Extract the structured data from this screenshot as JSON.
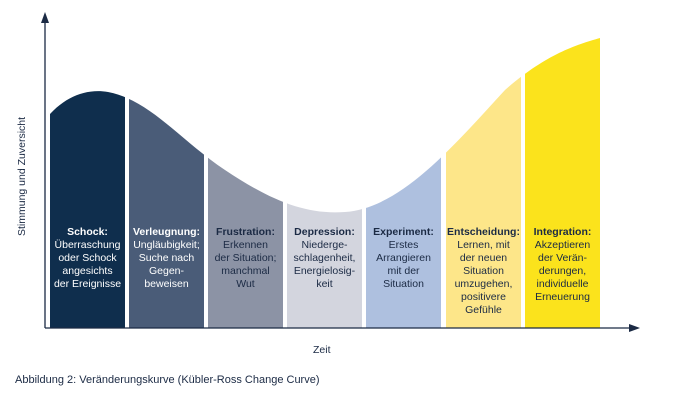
{
  "diagram": {
    "phases": [
      {
        "title": "Schock:",
        "lines": [
          "Überraschung",
          "oder Schock",
          "angesichts",
          "der Ereignisse"
        ],
        "color": "#0f2e4d",
        "text_color": "light",
        "level": 0.77
      },
      {
        "title": "Verleugnung:",
        "lines": [
          "Ungläubigkeit;",
          "Suche nach",
          "Gegen-",
          "beweisen"
        ],
        "color": "#4a5c78",
        "text_color": "light",
        "level": 0.72
      },
      {
        "title": "Frustration:",
        "lines": [
          "Erkennen",
          "der Situation;",
          "manchmal",
          "Wut"
        ],
        "color": "#8c93a5",
        "text_color": "dark",
        "level": 0.58
      },
      {
        "title": "Depression:",
        "lines": [
          "Niederge-",
          "schlagenheit,",
          "Energielosig-",
          "keit"
        ],
        "color": "#d3d5de",
        "text_color": "dark",
        "level": 0.4
      },
      {
        "title": "Experiment:",
        "lines": [
          "Erstes",
          "Arrangieren",
          "mit der",
          "Situation"
        ],
        "color": "#aec0df",
        "text_color": "dark",
        "level": 0.5
      },
      {
        "title": "Entscheidung:",
        "lines": [
          "Lernen, mit",
          "der neuen",
          "Situation",
          "umzugehen,",
          "positivere",
          "Gefühle"
        ],
        "color": "#fde689",
        "text_color": "dark",
        "level": 0.78
      },
      {
        "title": "Integration:",
        "lines": [
          "Akzeptieren",
          "der Verän-",
          "derungen,",
          "individuelle",
          "Erneuerung"
        ],
        "color": "#fbe31c",
        "text_color": "dark",
        "level": 1.0
      }
    ],
    "y_axis_label": "Stimmung und Zuversicht",
    "x_axis_label": "Zeit"
  },
  "caption": "Abbildung 2: Veränderungskurve (Kübler-Ross Change Curve)"
}
